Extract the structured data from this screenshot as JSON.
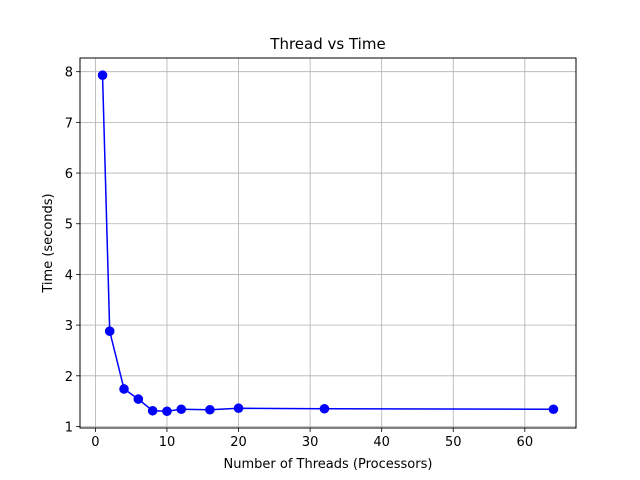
{
  "chart_data": {
    "type": "line",
    "title": "Thread vs Time",
    "xlabel": "Number of Threads (Processors)",
    "ylabel": "Time (seconds)",
    "xlim": [
      -2.15,
      67.15
    ],
    "ylim": [
      0.97,
      8.27
    ],
    "xticks": [
      0,
      10,
      20,
      30,
      40,
      50,
      60
    ],
    "yticks": [
      1,
      2,
      3,
      4,
      5,
      6,
      7,
      8
    ],
    "grid": true,
    "color": "#0000ff",
    "marker": "circle",
    "series": [
      {
        "x": [
          1,
          2,
          4,
          6,
          8,
          10,
          12,
          16,
          20,
          32,
          64
        ],
        "y": [
          7.93,
          2.88,
          1.74,
          1.54,
          1.31,
          1.3,
          1.34,
          1.33,
          1.36,
          1.35,
          1.34
        ]
      }
    ]
  }
}
